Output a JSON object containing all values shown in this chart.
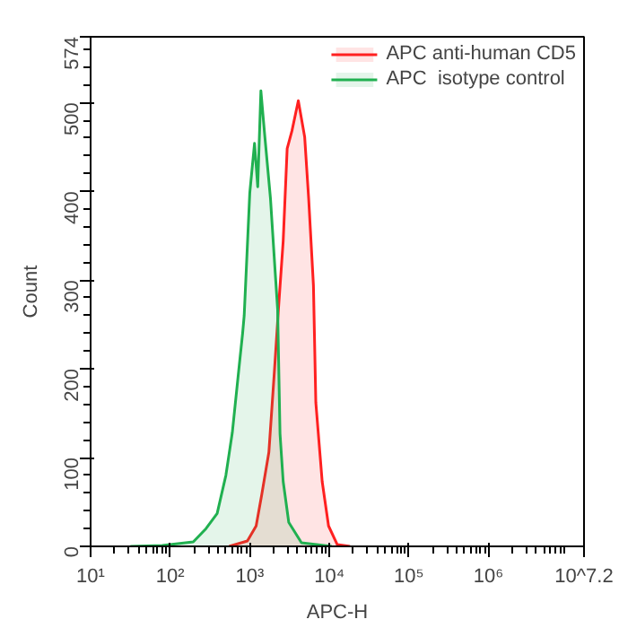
{
  "chart_data": {
    "type": "area",
    "xlabel": "APC-H",
    "ylabel": "Count",
    "log": "x",
    "xlim": [
      10,
      15848932
    ],
    "ylim": [
      0,
      574
    ],
    "xticks": [
      {
        "value": 10,
        "label": "10¹"
      },
      {
        "value": 100,
        "label": "10²"
      },
      {
        "value": 1000,
        "label": "10³"
      },
      {
        "value": 10000,
        "label": "10⁴"
      },
      {
        "value": 100000,
        "label": "10⁵"
      },
      {
        "value": 1000000,
        "label": "10⁶"
      },
      {
        "value": 15848932,
        "label": "10^7.2"
      }
    ],
    "yticks": [
      0,
      100,
      200,
      300,
      400,
      500,
      574
    ],
    "grid": false,
    "legend": "top right",
    "series": [
      {
        "name": "APC anti-human CD5",
        "color": "#ff2020",
        "x": [
          550,
          933,
          1202,
          1413,
          1738,
          2042,
          2291,
          2630,
          2951,
          3388,
          4074,
          4898,
          5495,
          6310,
          6761,
          8128,
          9772,
          12589,
          18197
        ],
        "values": [
          0,
          6,
          23,
          58,
          106,
          198,
          267,
          344,
          448,
          468,
          502,
          461,
          392,
          294,
          162,
          73,
          23,
          2,
          0
        ]
      },
      {
        "name": "APC  isotype control",
        "color": "#20b050",
        "x": [
          31.6,
          79.4,
          195,
          282,
          389,
          501,
          603,
          724,
          813,
          851,
          1000,
          1148,
          1259,
          1380,
          1549,
          1820,
          2089,
          2239,
          2399,
          2630,
          3090,
          4467,
          10715
        ],
        "values": [
          0,
          1,
          5,
          20,
          37,
          80,
          128,
          197,
          240,
          260,
          398,
          454,
          405,
          513,
          461,
          392,
          308,
          267,
          127,
          73,
          27,
          4,
          0
        ]
      }
    ]
  }
}
